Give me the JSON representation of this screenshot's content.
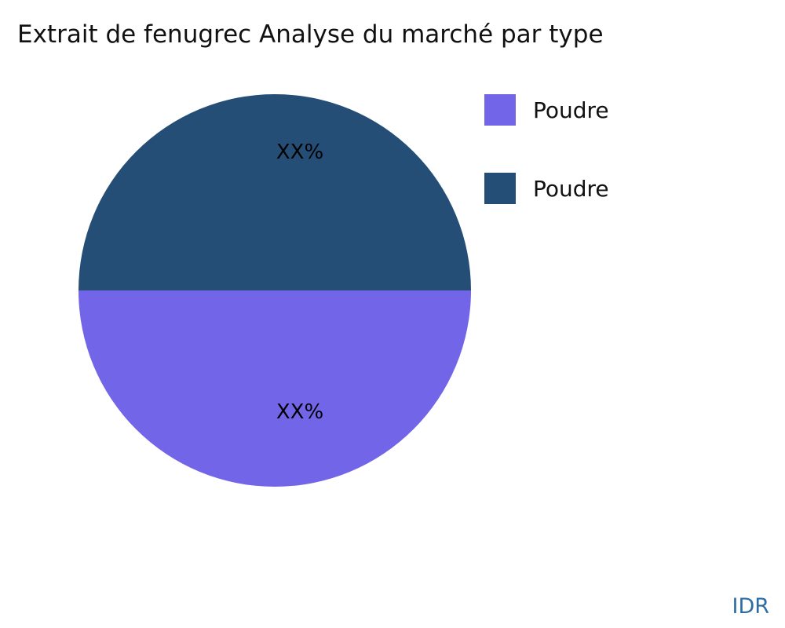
{
  "title": "Extrait de fenugrec Analyse du marché par type",
  "watermark": "IDR",
  "colors": {
    "slice_purple": "#7265e8",
    "slice_navy": "#254e77",
    "watermark_blue": "#2e6da4",
    "title_text": "#111111",
    "background": "#ffffff"
  },
  "legend": [
    {
      "label": "Poudre",
      "color": "#7265e8"
    },
    {
      "label": "Poudre",
      "color": "#254e77"
    }
  ],
  "chart_data": {
    "type": "pie",
    "title": "Extrait de fenugrec Analyse du marché par type",
    "labels": [
      "Poudre",
      "Poudre"
    ],
    "values": [
      50,
      50
    ],
    "colors": [
      "#7265e8",
      "#254e77"
    ],
    "slice_labels": [
      "XX%",
      "XX%"
    ],
    "slice_label_top": "XX%",
    "slice_label_bottom": "XX%",
    "legend_position": "upper right",
    "notes": "Purple slice is the bottom half of the pie; navy slice is the top half. Percentage values are masked as XX% in the source image."
  }
}
